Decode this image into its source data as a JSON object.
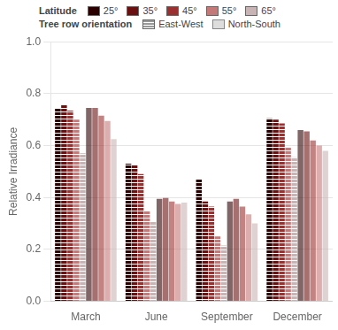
{
  "chart_data": {
    "type": "bar",
    "categories": [
      "March",
      "June",
      "September",
      "December"
    ],
    "ylabel": "Relative Irradiance",
    "ylim": [
      0.0,
      1.0
    ],
    "yticks": [
      {
        "value": 0.0,
        "label": "0.0"
      },
      0.2,
      0.4,
      0.6,
      0.8,
      {
        "value": 1.0,
        "label": "1.0"
      }
    ],
    "grid": true,
    "legend": "top",
    "color_legend_title": "Latitude",
    "pattern_legend_title": "Tree row orientation",
    "row_orientations": [
      "East-West",
      "North-South"
    ],
    "series": [
      {
        "name": "25°",
        "color": "#2b0000",
        "row_orientation": "East-West",
        "values": [
          0.745,
          0.53,
          0.47,
          0.705
        ]
      },
      {
        "name": "35°",
        "color": "#6b1010",
        "row_orientation": "East-West",
        "values": [
          0.755,
          0.525,
          0.385,
          0.7
        ]
      },
      {
        "name": "45°",
        "color": "#9b3030",
        "row_orientation": "East-West",
        "values": [
          0.735,
          0.49,
          0.365,
          0.685
        ]
      },
      {
        "name": "55°",
        "color": "#c47878",
        "row_orientation": "East-West",
        "values": [
          0.7,
          0.35,
          0.25,
          0.595
        ]
      },
      {
        "name": "65°",
        "color": "#c8b4b4",
        "row_orientation": "East-West",
        "values": [
          0.57,
          0.305,
          0.215,
          0.555
        ]
      },
      {
        "name": "25°",
        "color": "#2b0000",
        "row_orientation": "North-South",
        "values": [
          0.745,
          0.395,
          0.385,
          0.66
        ]
      },
      {
        "name": "35°",
        "color": "#6b1010",
        "row_orientation": "North-South",
        "values": [
          0.745,
          0.398,
          0.395,
          0.655
        ]
      },
      {
        "name": "45°",
        "color": "#9b3030",
        "row_orientation": "North-South",
        "values": [
          0.715,
          0.385,
          0.365,
          0.62
        ]
      },
      {
        "name": "55°",
        "color": "#c47878",
        "row_orientation": "North-South",
        "values": [
          0.695,
          0.375,
          0.335,
          0.6
        ]
      },
      {
        "name": "65°",
        "color": "#c8b4b4",
        "row_orientation": "North-South",
        "values": [
          0.625,
          0.38,
          0.3,
          0.58
        ]
      }
    ]
  }
}
